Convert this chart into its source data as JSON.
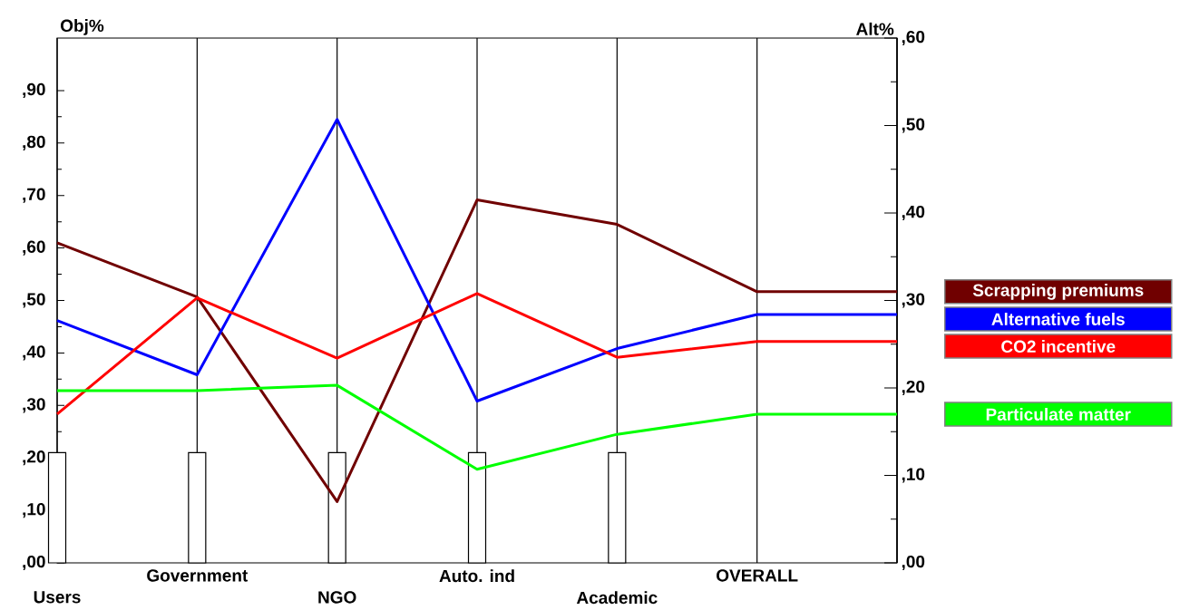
{
  "chart_data": {
    "type": "line",
    "categories": [
      "Users",
      "Government",
      "NGO",
      "Auto. ind",
      "Academic",
      "OVERALL",
      null
    ],
    "ylabel": "Obj%",
    "y2label": "Alt%",
    "ylim": [
      0,
      100
    ],
    "yticks": [
      {
        "value": 0,
        "label": ",00"
      },
      {
        "value": 10,
        "label": ",10"
      },
      {
        "value": 20,
        "label": ",20"
      },
      {
        "value": 30,
        "label": ",30"
      },
      {
        "value": 40,
        "label": ",40"
      },
      {
        "value": 50,
        "label": ",50"
      },
      {
        "value": 60,
        "label": ",60"
      },
      {
        "value": 70,
        "label": ",70"
      },
      {
        "value": 80,
        "label": ",80"
      },
      {
        "value": 90,
        "label": ",90"
      }
    ],
    "y2lim": [
      0,
      60
    ],
    "y2ticks": [
      {
        "value": 0,
        "label": ",00"
      },
      {
        "value": 10,
        "label": ",10"
      },
      {
        "value": 20,
        "label": ",20"
      },
      {
        "value": 30,
        "label": ",30"
      },
      {
        "value": 40,
        "label": ",40"
      },
      {
        "value": 50,
        "label": ",50"
      },
      {
        "value": 60,
        "label": ",60"
      }
    ],
    "grid": "x",
    "legend": "right",
    "series": [
      {
        "type": "bar",
        "color": "#ffffff",
        "values": [
          21,
          21,
          21,
          21,
          21,
          null,
          null
        ]
      },
      {
        "name": "Scrapping premiums",
        "color": "#700000",
        "axis": "y2",
        "values": [
          36.6,
          30.4,
          7,
          41.5,
          38.7,
          31,
          31
        ]
      },
      {
        "name": "Alternative fuels",
        "color": "#0000ff",
        "axis": "y2",
        "values": [
          27.7,
          21.5,
          50.7,
          18.5,
          24.5,
          28.4,
          28.4
        ]
      },
      {
        "name": "CO2 incentive",
        "color": "#ff0000",
        "axis": "y2",
        "values": [
          17,
          30.3,
          23.4,
          30.8,
          23.5,
          25.3,
          25.3
        ]
      },
      {
        "name": "Particulate matter",
        "color": "#00ff00",
        "axis": "y2",
        "values": [
          19.7,
          19.7,
          20.3,
          10.7,
          14.7,
          17,
          17
        ]
      }
    ]
  }
}
